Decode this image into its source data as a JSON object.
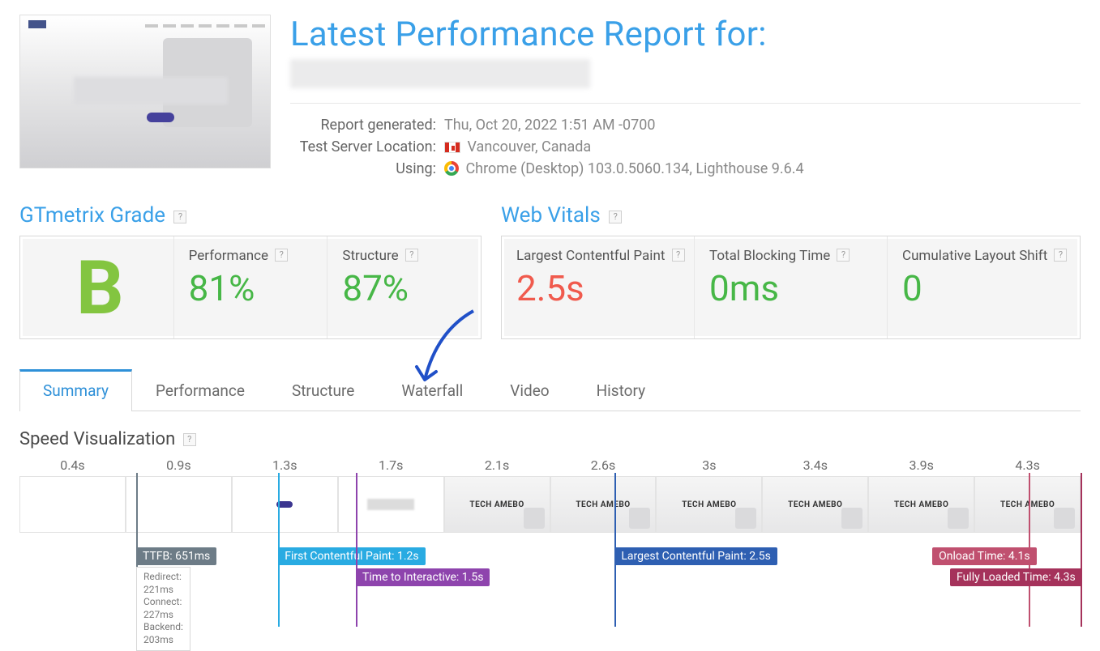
{
  "header": {
    "title": "Latest Performance Report for:"
  },
  "meta": {
    "generated_label": "Report generated:",
    "generated_value": "Thu, Oct 20, 2022 1:51 AM -0700",
    "location_label": "Test Server Location:",
    "location_value": "Vancouver, Canada",
    "using_label": "Using:",
    "using_value": "Chrome (Desktop) 103.0.5060.134, Lighthouse 9.6.4"
  },
  "grade_panel": {
    "title": "GTmetrix Grade",
    "letter": "B",
    "letter_color": "#83c540",
    "performance_label": "Performance",
    "performance_value": "81%",
    "structure_label": "Structure",
    "structure_value": "87%"
  },
  "vitals_panel": {
    "title": "Web Vitals",
    "lcp_label": "Largest Contentful Paint",
    "lcp_value": "2.5s",
    "lcp_color": "#f05a4d",
    "tbt_label": "Total Blocking Time",
    "tbt_value": "0ms",
    "cls_label": "Cumulative Layout Shift",
    "cls_value": "0"
  },
  "tabs": {
    "summary": "Summary",
    "performance": "Performance",
    "structure": "Structure",
    "waterfall": "Waterfall",
    "video": "Video",
    "history": "History",
    "active": "summary"
  },
  "speedviz": {
    "title": "Speed Visualization",
    "timestamps": [
      "0.4s",
      "0.9s",
      "1.3s",
      "1.7s",
      "2.1s",
      "2.6s",
      "3s",
      "3.4s",
      "3.9s",
      "4.3s"
    ],
    "frame_loaded_from_index": 4,
    "frame_partial_indices": [
      2,
      3
    ],
    "mini_logo_text": "TECH AMEBO",
    "total_time_s": 4.3,
    "markers": {
      "ttfb": {
        "label": "TTFB: 651ms",
        "time_s": 0.651,
        "color": "#6d7c87",
        "details": [
          "Redirect: 221ms",
          "Connect: 227ms",
          "Backend: 203ms"
        ]
      },
      "fcp": {
        "label": "First Contentful Paint: 1.2s",
        "time_s": 1.2,
        "color": "#29abe2"
      },
      "tti": {
        "label": "Time to Interactive: 1.5s",
        "time_s": 1.5,
        "color": "#8e44ad"
      },
      "lcp": {
        "label": "Largest Contentful Paint: 2.5s",
        "time_s": 2.5,
        "color": "#2e5fb2"
      },
      "onload": {
        "label": "Onload Time: 4.1s",
        "time_s": 4.1,
        "color": "#c0506f"
      },
      "full": {
        "label": "Fully Loaded Time: 4.3s",
        "time_s": 4.3,
        "color": "#a5325b"
      }
    }
  },
  "colors": {
    "accent_blue": "#3aa0e8",
    "green": "#47b747",
    "red": "#f05a4d",
    "panel_bg": "#f5f5f5",
    "border": "#d8d8d8"
  }
}
